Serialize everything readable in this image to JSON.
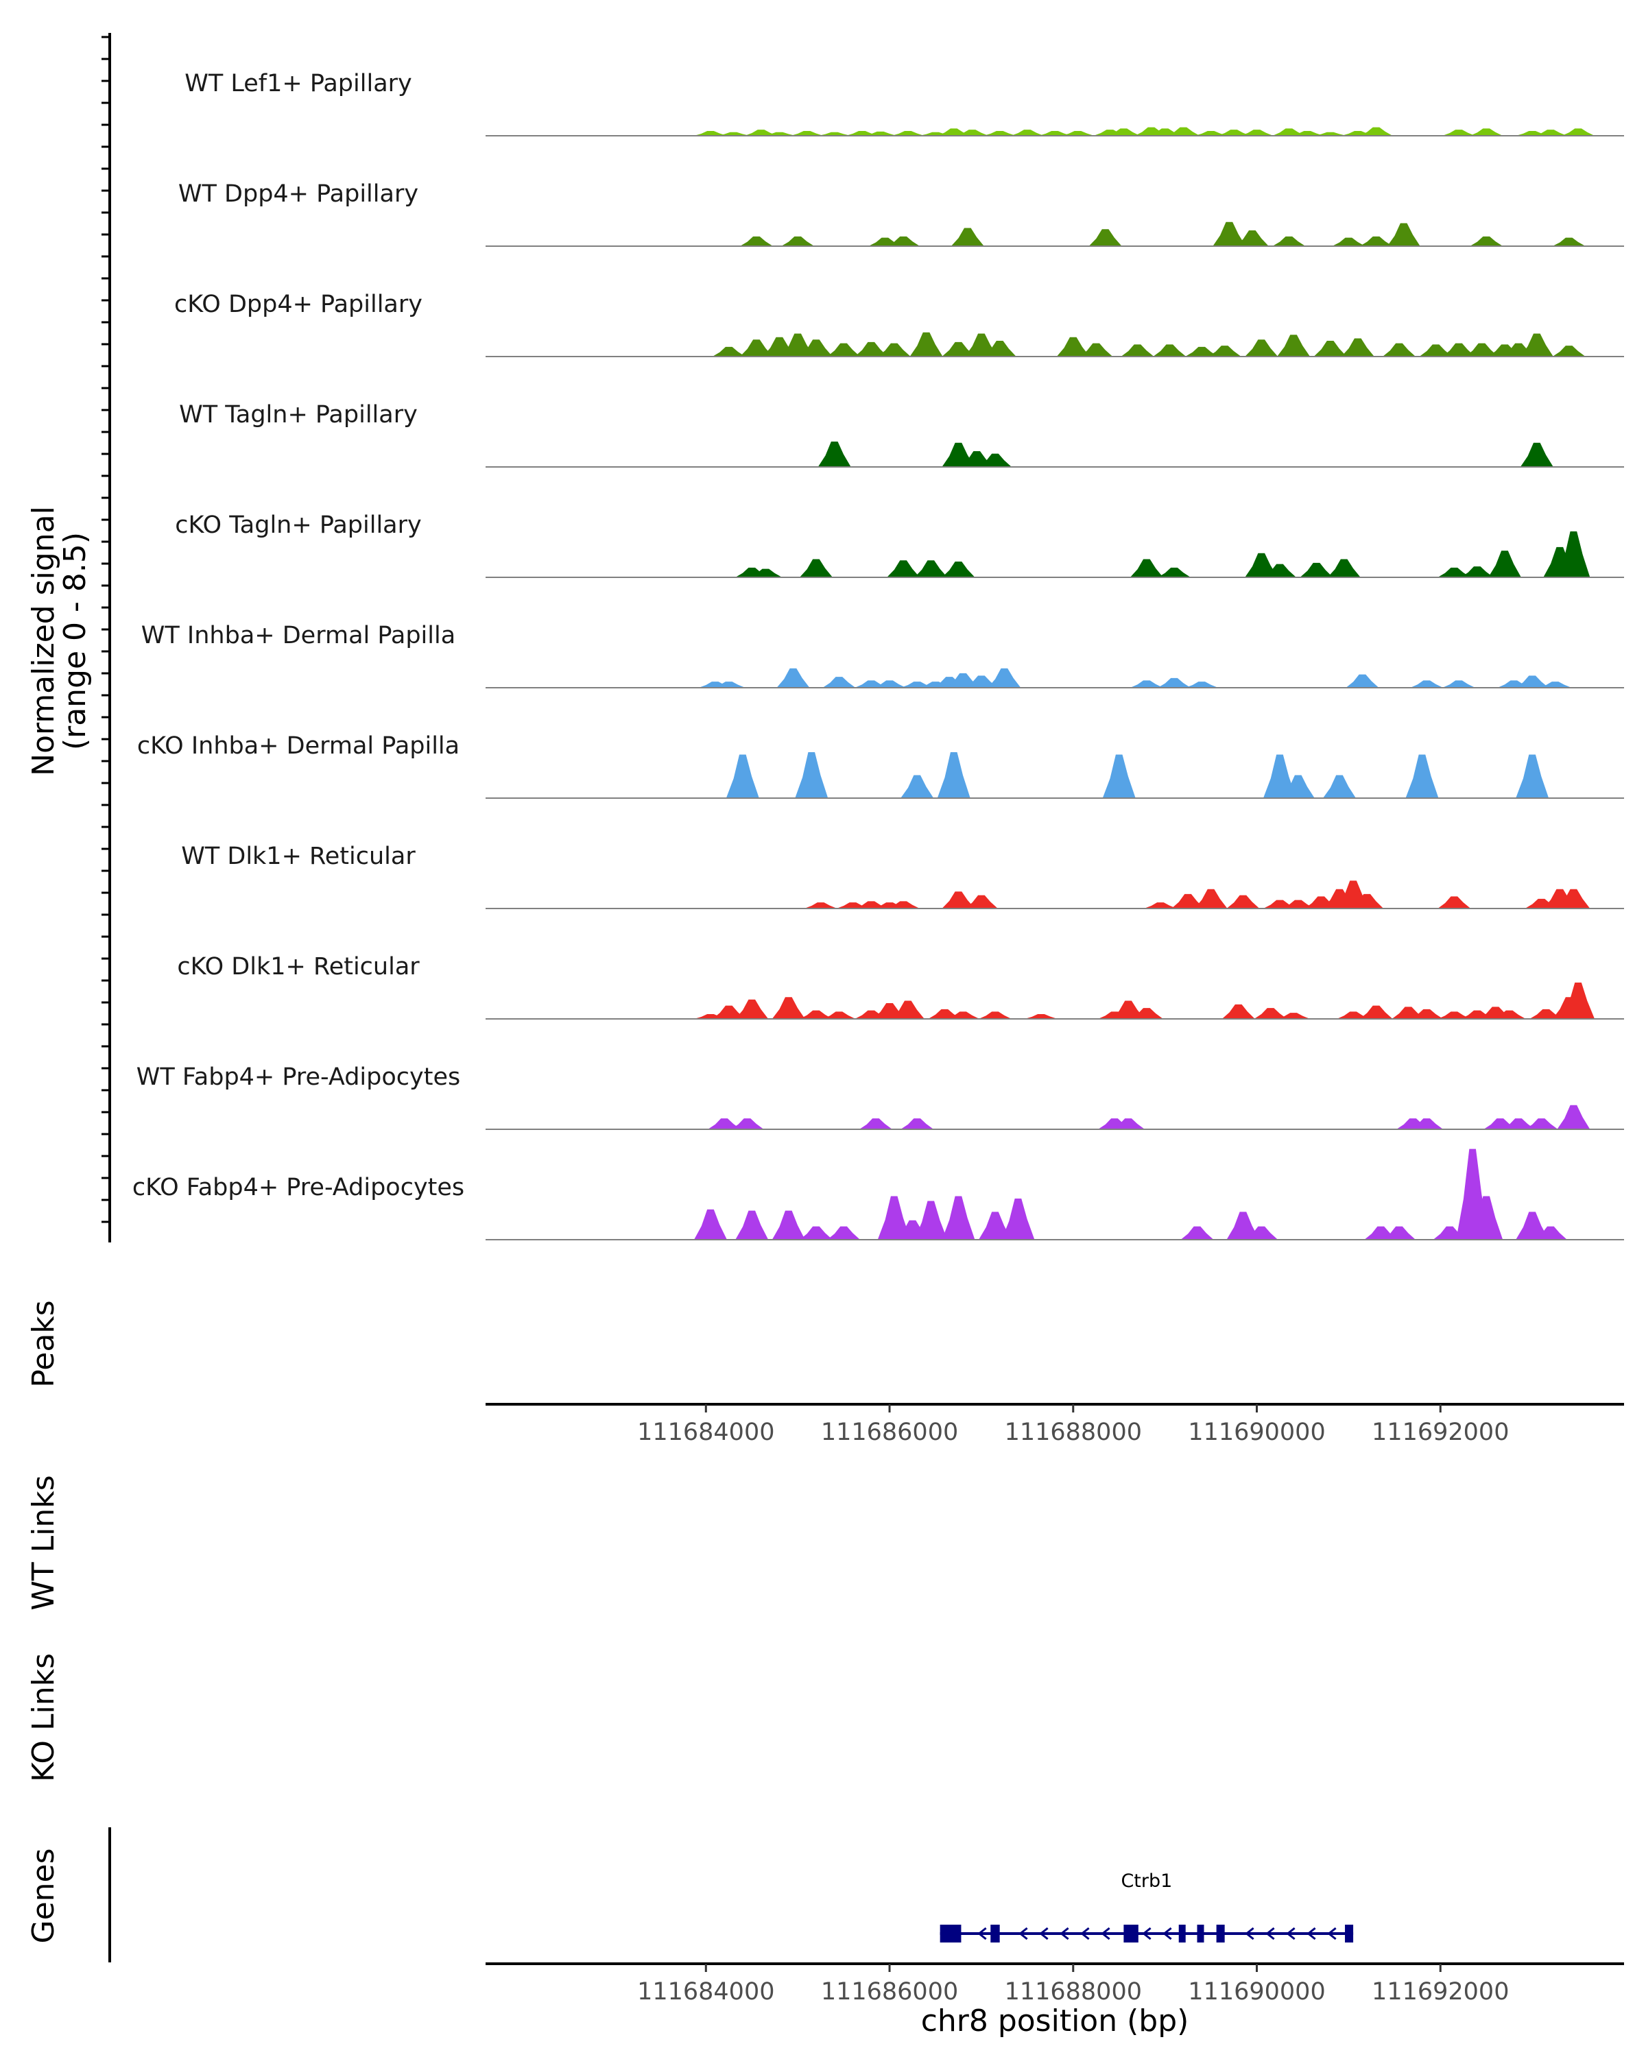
{
  "chart_data": {
    "type": "area",
    "signal_axis_label": "Normalized signal",
    "signal_axis_range_label": "(range 0 - 8.5)",
    "signal_range": [
      0,
      8.5
    ],
    "x_range": [
      111681600,
      111694000
    ],
    "x_ticks": [
      111684000,
      111686000,
      111688000,
      111690000,
      111692000
    ],
    "x_tick_labels": [
      "111684000",
      "111686000",
      "111688000",
      "111690000",
      "111692000"
    ],
    "xlabel": "chr8 position (bp)",
    "track_labels": {
      "peaks": "Peaks",
      "wt_links": "WT Links",
      "ko_links": "KO Links",
      "genes": "Genes"
    },
    "tracks": [
      {
        "name": "WT Lef1+ Papillary",
        "color": "#7ac70c",
        "peaks": [
          [
            111684050,
            0.4
          ],
          [
            111684300,
            0.3
          ],
          [
            111684600,
            0.5
          ],
          [
            111684800,
            0.3
          ],
          [
            111685100,
            0.4
          ],
          [
            111685400,
            0.3
          ],
          [
            111685700,
            0.4
          ],
          [
            111685900,
            0.35
          ],
          [
            111686200,
            0.4
          ],
          [
            111686500,
            0.3
          ],
          [
            111686700,
            0.6
          ],
          [
            111686900,
            0.5
          ],
          [
            111687200,
            0.4
          ],
          [
            111687500,
            0.5
          ],
          [
            111687800,
            0.4
          ],
          [
            111688050,
            0.4
          ],
          [
            111688400,
            0.5
          ],
          [
            111688550,
            0.6
          ],
          [
            111688850,
            0.7
          ],
          [
            111689000,
            0.6
          ],
          [
            111689200,
            0.7
          ],
          [
            111689500,
            0.4
          ],
          [
            111689750,
            0.5
          ],
          [
            111690000,
            0.5
          ],
          [
            111690350,
            0.6
          ],
          [
            111690550,
            0.4
          ],
          [
            111690800,
            0.3
          ],
          [
            111691100,
            0.4
          ],
          [
            111691300,
            0.7
          ],
          [
            111692200,
            0.5
          ],
          [
            111692500,
            0.6
          ],
          [
            111693000,
            0.4
          ],
          [
            111693200,
            0.5
          ],
          [
            111693500,
            0.6
          ]
        ]
      },
      {
        "name": "WT Dpp4+ Papillary",
        "color": "#4e8c0a",
        "peaks": [
          [
            111684550,
            0.8
          ],
          [
            111685000,
            0.8
          ],
          [
            111685950,
            0.7
          ],
          [
            111686150,
            0.8
          ],
          [
            111686850,
            1.5
          ],
          [
            111688350,
            1.4
          ],
          [
            111689700,
            2.0
          ],
          [
            111689950,
            1.3
          ],
          [
            111690350,
            0.8
          ],
          [
            111691000,
            0.7
          ],
          [
            111691300,
            0.8
          ],
          [
            111691600,
            1.9
          ],
          [
            111692500,
            0.8
          ],
          [
            111693400,
            0.7
          ]
        ]
      },
      {
        "name": "cKO Dpp4+ Papillary",
        "color": "#4e8c0a",
        "peaks": [
          [
            111684250,
            0.8
          ],
          [
            111684550,
            1.4
          ],
          [
            111684800,
            1.6
          ],
          [
            111685000,
            1.9
          ],
          [
            111685200,
            1.4
          ],
          [
            111685500,
            1.1
          ],
          [
            111685800,
            1.2
          ],
          [
            111686050,
            1.1
          ],
          [
            111686400,
            2.0
          ],
          [
            111686750,
            1.2
          ],
          [
            111687000,
            1.9
          ],
          [
            111687200,
            1.3
          ],
          [
            111688000,
            1.6
          ],
          [
            111688250,
            1.1
          ],
          [
            111688700,
            1.0
          ],
          [
            111689050,
            1.0
          ],
          [
            111689400,
            0.8
          ],
          [
            111689650,
            0.9
          ],
          [
            111690050,
            1.4
          ],
          [
            111690400,
            1.8
          ],
          [
            111690800,
            1.3
          ],
          [
            111691100,
            1.5
          ],
          [
            111691550,
            1.1
          ],
          [
            111691950,
            1.0
          ],
          [
            111692200,
            1.1
          ],
          [
            111692450,
            1.1
          ],
          [
            111692700,
            1.0
          ],
          [
            111692850,
            1.1
          ],
          [
            111693050,
            1.9
          ],
          [
            111693400,
            0.9
          ]
        ]
      },
      {
        "name": "WT Tagln+ Papillary",
        "color": "#006400",
        "peaks": [
          [
            111685400,
            2.1
          ],
          [
            111686750,
            2.0
          ],
          [
            111686950,
            1.3
          ],
          [
            111687150,
            1.1
          ],
          [
            111693050,
            2.0
          ]
        ]
      },
      {
        "name": "cKO Tagln+ Papillary",
        "color": "#006400",
        "peaks": [
          [
            111684500,
            0.8
          ],
          [
            111684650,
            0.7
          ],
          [
            111685200,
            1.5
          ],
          [
            111686150,
            1.4
          ],
          [
            111686450,
            1.4
          ],
          [
            111686750,
            1.3
          ],
          [
            111688800,
            1.5
          ],
          [
            111689100,
            0.8
          ],
          [
            111690050,
            2.0
          ],
          [
            111690250,
            1.1
          ],
          [
            111690650,
            1.2
          ],
          [
            111690950,
            1.5
          ],
          [
            111692150,
            0.8
          ],
          [
            111692400,
            0.9
          ],
          [
            111692700,
            2.2
          ],
          [
            111693300,
            2.5
          ],
          [
            111693450,
            3.8
          ]
        ]
      },
      {
        "name": "WT Inhba+ Dermal Papilla",
        "color": "#56a3e6",
        "peaks": [
          [
            111684100,
            0.5
          ],
          [
            111684250,
            0.5
          ],
          [
            111684950,
            1.6
          ],
          [
            111685450,
            0.9
          ],
          [
            111685800,
            0.6
          ],
          [
            111686000,
            0.6
          ],
          [
            111686300,
            0.5
          ],
          [
            111686500,
            0.5
          ],
          [
            111686650,
            0.9
          ],
          [
            111686800,
            1.2
          ],
          [
            111687000,
            1.0
          ],
          [
            111687250,
            1.6
          ],
          [
            111688800,
            0.6
          ],
          [
            111689100,
            0.8
          ],
          [
            111689400,
            0.5
          ],
          [
            111691150,
            1.1
          ],
          [
            111691850,
            0.6
          ],
          [
            111692200,
            0.6
          ],
          [
            111692800,
            0.6
          ],
          [
            111693000,
            1.0
          ],
          [
            111693250,
            0.5
          ]
        ]
      },
      {
        "name": "cKO Inhba+ Dermal Papilla",
        "color": "#56a3e6",
        "peaks": [
          [
            111684400,
            3.6
          ],
          [
            111685150,
            3.8
          ],
          [
            111686300,
            1.9
          ],
          [
            111686700,
            3.8
          ],
          [
            111688500,
            3.6
          ],
          [
            111690250,
            3.6
          ],
          [
            111690450,
            1.9
          ],
          [
            111690900,
            1.9
          ],
          [
            111691800,
            3.6
          ],
          [
            111693000,
            3.6
          ]
        ]
      },
      {
        "name": "WT Dlk1+ Reticular",
        "color": "#ec2b25",
        "peaks": [
          [
            111685250,
            0.5
          ],
          [
            111685600,
            0.5
          ],
          [
            111685800,
            0.6
          ],
          [
            111686000,
            0.5
          ],
          [
            111686150,
            0.6
          ],
          [
            111686750,
            1.4
          ],
          [
            111687000,
            1.1
          ],
          [
            111688950,
            0.5
          ],
          [
            111689250,
            1.2
          ],
          [
            111689500,
            1.6
          ],
          [
            111689850,
            1.1
          ],
          [
            111690250,
            0.7
          ],
          [
            111690450,
            0.7
          ],
          [
            111690700,
            1.0
          ],
          [
            111690900,
            1.6
          ],
          [
            111691050,
            2.3
          ],
          [
            111691200,
            1.2
          ],
          [
            111692150,
            1.0
          ],
          [
            111693100,
            0.8
          ],
          [
            111693300,
            1.6
          ],
          [
            111693450,
            1.6
          ]
        ]
      },
      {
        "name": "cKO Dlk1+ Reticular",
        "color": "#ec2b25",
        "peaks": [
          [
            111684050,
            0.4
          ],
          [
            111684250,
            1.1
          ],
          [
            111684500,
            1.6
          ],
          [
            111684900,
            1.8
          ],
          [
            111685200,
            0.7
          ],
          [
            111685450,
            0.6
          ],
          [
            111685800,
            0.7
          ],
          [
            111686000,
            1.3
          ],
          [
            111686200,
            1.5
          ],
          [
            111686600,
            0.8
          ],
          [
            111686800,
            0.6
          ],
          [
            111687150,
            0.6
          ],
          [
            111687650,
            0.4
          ],
          [
            111688450,
            0.6
          ],
          [
            111688600,
            1.5
          ],
          [
            111688800,
            0.9
          ],
          [
            111689800,
            1.2
          ],
          [
            111690150,
            0.9
          ],
          [
            111690400,
            0.5
          ],
          [
            111691050,
            0.6
          ],
          [
            111691300,
            1.1
          ],
          [
            111691650,
            1.0
          ],
          [
            111691850,
            0.8
          ],
          [
            111692150,
            0.6
          ],
          [
            111692400,
            0.7
          ],
          [
            111692600,
            1.0
          ],
          [
            111692750,
            0.7
          ],
          [
            111693150,
            0.8
          ],
          [
            111693400,
            1.8
          ],
          [
            111693500,
            3.0
          ]
        ]
      },
      {
        "name": "WT Fabp4+ Pre-Adipocytes",
        "color": "#ad3ceb",
        "peaks": [
          [
            111684200,
            0.9
          ],
          [
            111684450,
            0.9
          ],
          [
            111685850,
            0.9
          ],
          [
            111686300,
            0.9
          ],
          [
            111688450,
            0.9
          ],
          [
            111688600,
            0.9
          ],
          [
            111691700,
            0.9
          ],
          [
            111691850,
            0.9
          ],
          [
            111692650,
            0.9
          ],
          [
            111692850,
            0.9
          ],
          [
            111693100,
            0.9
          ],
          [
            111693450,
            2.0
          ]
        ]
      },
      {
        "name": "cKO Fabp4+ Pre-Adipocytes",
        "color": "#ad3ceb",
        "peaks": [
          [
            111684050,
            2.5
          ],
          [
            111684500,
            2.4
          ],
          [
            111684900,
            2.4
          ],
          [
            111685200,
            1.1
          ],
          [
            111685500,
            1.1
          ],
          [
            111686050,
            3.6
          ],
          [
            111686250,
            1.6
          ],
          [
            111686450,
            3.2
          ],
          [
            111686750,
            3.6
          ],
          [
            111687150,
            2.3
          ],
          [
            111687400,
            3.4
          ],
          [
            111689350,
            1.1
          ],
          [
            111689850,
            2.3
          ],
          [
            111690050,
            1.1
          ],
          [
            111691350,
            1.1
          ],
          [
            111691550,
            1.1
          ],
          [
            111692100,
            1.1
          ],
          [
            111692350,
            7.5
          ],
          [
            111692500,
            3.6
          ],
          [
            111693000,
            2.3
          ],
          [
            111693200,
            1.1
          ]
        ]
      }
    ],
    "genes": [
      {
        "name": "Ctrb1",
        "start": 111686550,
        "end": 111691050,
        "strand": "-",
        "exons": [
          [
            111686550,
            111686780
          ],
          [
            111687100,
            111687200
          ],
          [
            111688550,
            111688710
          ],
          [
            111689150,
            111689210
          ],
          [
            111689350,
            111689420
          ],
          [
            111689560,
            111689650
          ],
          [
            111690960,
            111691050
          ]
        ]
      }
    ]
  }
}
